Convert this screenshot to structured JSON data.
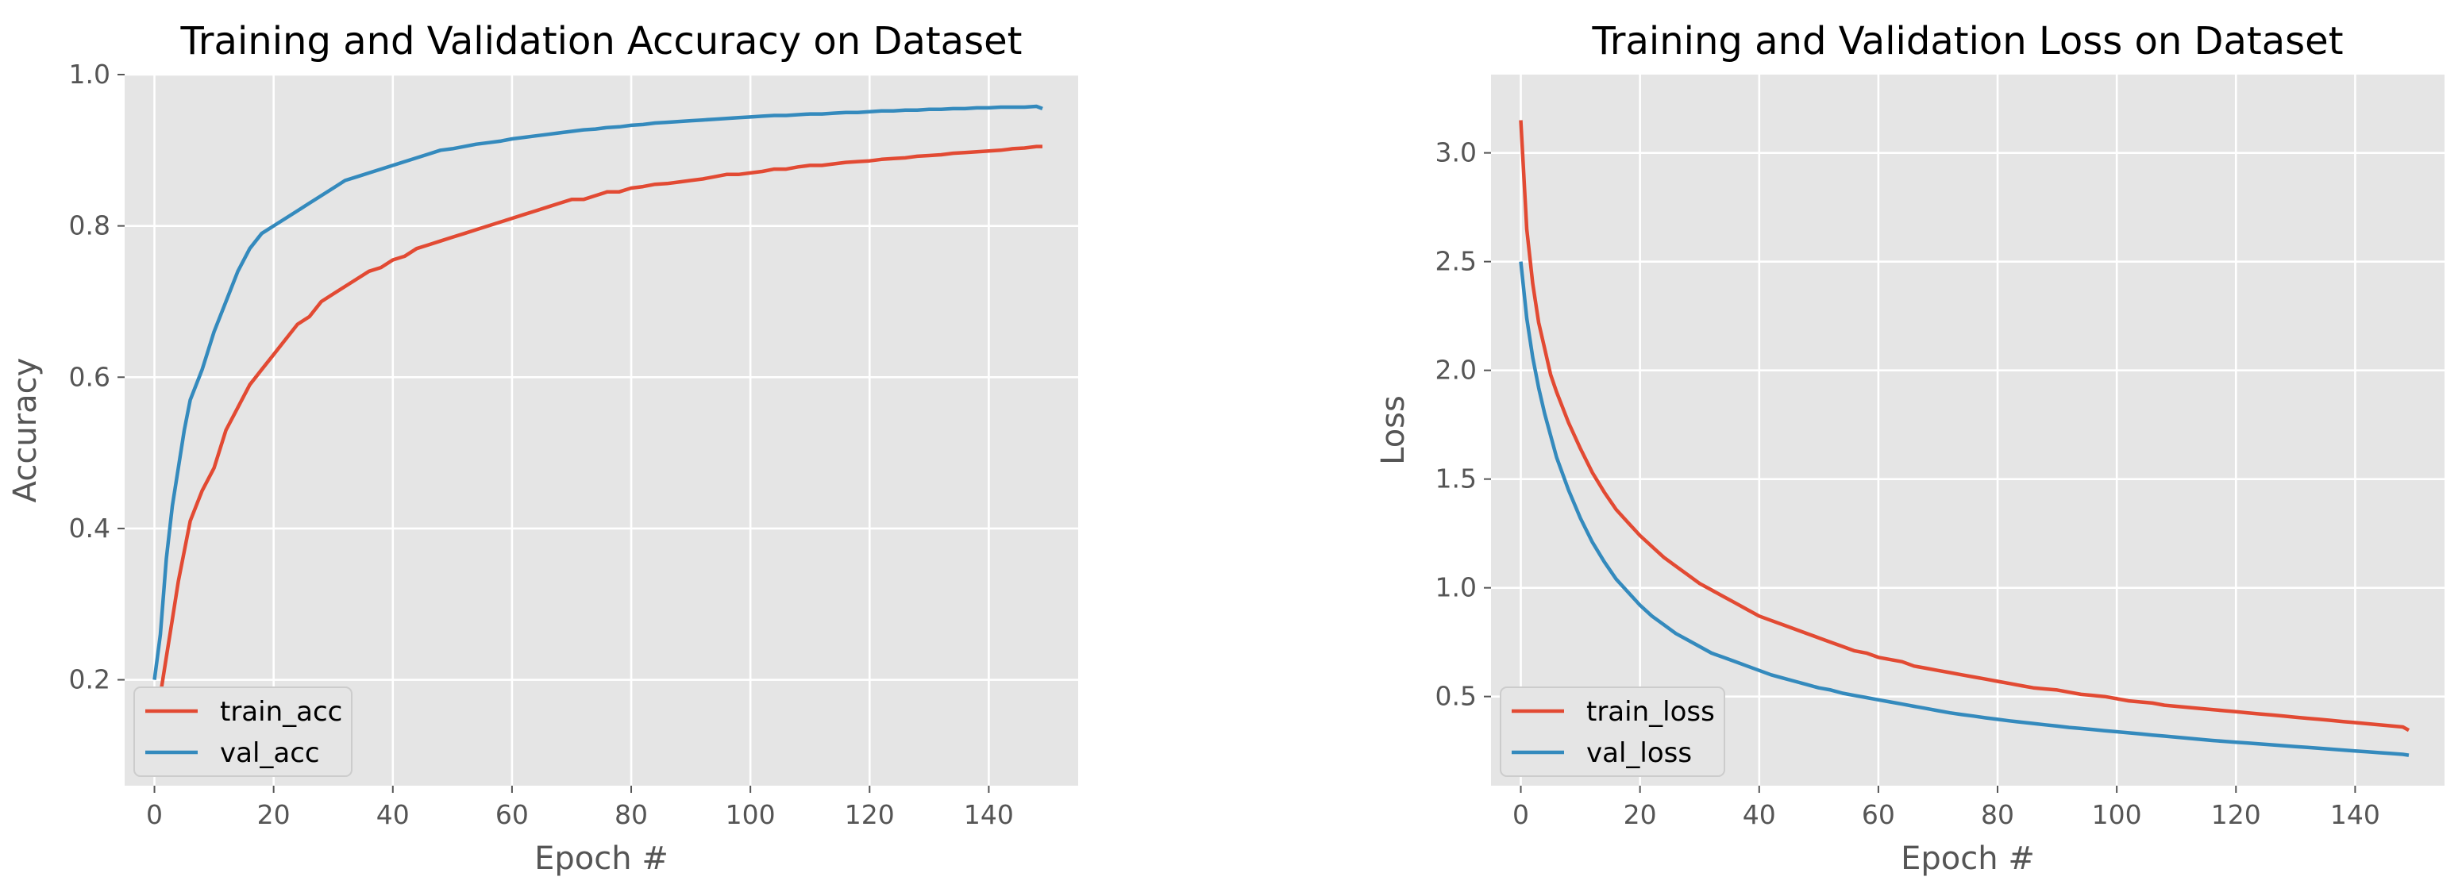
{
  "colors": {
    "train": "#e24a33",
    "val": "#348abd"
  },
  "chart_data": [
    {
      "type": "line",
      "title": "Training and Validation Accuracy on Dataset",
      "xlabel": "Epoch #",
      "ylabel": "Accuracy",
      "xlim": [
        -5,
        155
      ],
      "ylim": [
        0.06,
        1.0
      ],
      "xticks": [
        0,
        20,
        40,
        60,
        80,
        100,
        120,
        140
      ],
      "yticks": [
        0.2,
        0.4,
        0.6,
        0.8,
        1.0
      ],
      "ytick_labels": [
        "0.2",
        "0.4",
        "0.6",
        "0.8",
        "1.0"
      ],
      "grid": true,
      "legend": "lower-left",
      "series": [
        {
          "name": "train_acc",
          "color_key": "train",
          "x": [
            0,
            1,
            2,
            3,
            4,
            5,
            6,
            8,
            10,
            12,
            14,
            16,
            18,
            20,
            22,
            24,
            26,
            28,
            30,
            32,
            34,
            36,
            38,
            40,
            42,
            44,
            46,
            48,
            50,
            52,
            54,
            56,
            58,
            60,
            62,
            64,
            66,
            68,
            70,
            72,
            74,
            76,
            78,
            80,
            82,
            84,
            86,
            88,
            90,
            92,
            94,
            96,
            98,
            100,
            102,
            104,
            106,
            108,
            110,
            112,
            114,
            116,
            118,
            120,
            122,
            124,
            126,
            128,
            130,
            132,
            134,
            136,
            138,
            140,
            142,
            144,
            146,
            148,
            149
          ],
          "y": [
            0.09,
            0.18,
            0.23,
            0.28,
            0.33,
            0.37,
            0.41,
            0.45,
            0.48,
            0.53,
            0.56,
            0.59,
            0.61,
            0.63,
            0.65,
            0.67,
            0.68,
            0.7,
            0.71,
            0.72,
            0.73,
            0.74,
            0.745,
            0.755,
            0.76,
            0.77,
            0.775,
            0.78,
            0.785,
            0.79,
            0.795,
            0.8,
            0.805,
            0.81,
            0.815,
            0.82,
            0.825,
            0.83,
            0.835,
            0.835,
            0.84,
            0.845,
            0.845,
            0.85,
            0.852,
            0.855,
            0.856,
            0.858,
            0.86,
            0.862,
            0.865,
            0.868,
            0.868,
            0.87,
            0.872,
            0.875,
            0.875,
            0.878,
            0.88,
            0.88,
            0.882,
            0.884,
            0.885,
            0.886,
            0.888,
            0.889,
            0.89,
            0.892,
            0.893,
            0.894,
            0.896,
            0.897,
            0.898,
            0.899,
            0.9,
            0.902,
            0.903,
            0.905,
            0.905
          ]
        },
        {
          "name": "val_acc",
          "color_key": "val",
          "x": [
            0,
            1,
            2,
            3,
            4,
            5,
            6,
            8,
            10,
            12,
            14,
            16,
            18,
            20,
            22,
            24,
            26,
            28,
            30,
            32,
            34,
            36,
            38,
            40,
            42,
            44,
            46,
            48,
            50,
            52,
            54,
            56,
            58,
            60,
            62,
            64,
            66,
            68,
            70,
            72,
            74,
            76,
            78,
            80,
            82,
            84,
            86,
            88,
            90,
            92,
            94,
            96,
            98,
            100,
            102,
            104,
            106,
            108,
            110,
            112,
            114,
            116,
            118,
            120,
            122,
            124,
            126,
            128,
            130,
            132,
            134,
            136,
            138,
            140,
            142,
            144,
            146,
            148,
            149
          ],
          "y": [
            0.2,
            0.26,
            0.36,
            0.43,
            0.48,
            0.53,
            0.57,
            0.61,
            0.66,
            0.7,
            0.74,
            0.77,
            0.79,
            0.8,
            0.81,
            0.82,
            0.83,
            0.84,
            0.85,
            0.86,
            0.865,
            0.87,
            0.875,
            0.88,
            0.885,
            0.89,
            0.895,
            0.9,
            0.902,
            0.905,
            0.908,
            0.91,
            0.912,
            0.915,
            0.917,
            0.919,
            0.921,
            0.923,
            0.925,
            0.927,
            0.928,
            0.93,
            0.931,
            0.933,
            0.934,
            0.936,
            0.937,
            0.938,
            0.939,
            0.94,
            0.941,
            0.942,
            0.943,
            0.944,
            0.945,
            0.946,
            0.946,
            0.947,
            0.948,
            0.948,
            0.949,
            0.95,
            0.95,
            0.951,
            0.952,
            0.952,
            0.953,
            0.953,
            0.954,
            0.954,
            0.955,
            0.955,
            0.956,
            0.956,
            0.957,
            0.957,
            0.957,
            0.958,
            0.955
          ]
        }
      ]
    },
    {
      "type": "line",
      "title": "Training and Validation Loss on Dataset",
      "xlabel": "Epoch #",
      "ylabel": "Loss",
      "xlim": [
        -5,
        155
      ],
      "ylim": [
        0.09,
        3.36
      ],
      "xticks": [
        0,
        20,
        40,
        60,
        80,
        100,
        120,
        140
      ],
      "yticks": [
        0.5,
        1.0,
        1.5,
        2.0,
        2.5,
        3.0
      ],
      "ytick_labels": [
        "0.5",
        "1.0",
        "1.5",
        "2.0",
        "2.5",
        "3.0"
      ],
      "grid": true,
      "legend": "lower-left",
      "series": [
        {
          "name": "train_loss",
          "color_key": "train",
          "x": [
            0,
            1,
            2,
            3,
            4,
            5,
            6,
            8,
            10,
            12,
            14,
            16,
            18,
            20,
            22,
            24,
            26,
            28,
            30,
            32,
            34,
            36,
            38,
            40,
            42,
            44,
            46,
            48,
            50,
            52,
            54,
            56,
            58,
            60,
            62,
            64,
            66,
            68,
            70,
            72,
            74,
            76,
            78,
            80,
            82,
            84,
            86,
            88,
            90,
            92,
            94,
            96,
            98,
            100,
            102,
            104,
            106,
            108,
            110,
            112,
            114,
            116,
            118,
            120,
            122,
            124,
            126,
            128,
            130,
            132,
            134,
            136,
            138,
            140,
            142,
            144,
            146,
            148,
            149
          ],
          "y": [
            3.15,
            2.65,
            2.4,
            2.22,
            2.1,
            1.98,
            1.9,
            1.76,
            1.64,
            1.53,
            1.44,
            1.36,
            1.3,
            1.24,
            1.19,
            1.14,
            1.1,
            1.06,
            1.02,
            0.99,
            0.96,
            0.93,
            0.9,
            0.87,
            0.85,
            0.83,
            0.81,
            0.79,
            0.77,
            0.75,
            0.73,
            0.71,
            0.7,
            0.68,
            0.67,
            0.66,
            0.64,
            0.63,
            0.62,
            0.61,
            0.6,
            0.59,
            0.58,
            0.57,
            0.56,
            0.55,
            0.54,
            0.535,
            0.53,
            0.52,
            0.51,
            0.505,
            0.5,
            0.49,
            0.48,
            0.475,
            0.47,
            0.46,
            0.455,
            0.45,
            0.445,
            0.44,
            0.435,
            0.43,
            0.425,
            0.42,
            0.415,
            0.41,
            0.405,
            0.4,
            0.395,
            0.39,
            0.385,
            0.38,
            0.375,
            0.37,
            0.365,
            0.36,
            0.345
          ]
        },
        {
          "name": "val_loss",
          "color_key": "val",
          "x": [
            0,
            1,
            2,
            3,
            4,
            5,
            6,
            8,
            10,
            12,
            14,
            16,
            18,
            20,
            22,
            24,
            26,
            28,
            30,
            32,
            34,
            36,
            38,
            40,
            42,
            44,
            46,
            48,
            50,
            52,
            54,
            56,
            58,
            60,
            62,
            64,
            66,
            68,
            70,
            72,
            74,
            76,
            78,
            80,
            82,
            84,
            86,
            88,
            90,
            92,
            94,
            96,
            98,
            100,
            102,
            104,
            106,
            108,
            110,
            112,
            114,
            116,
            118,
            120,
            122,
            124,
            126,
            128,
            130,
            132,
            134,
            136,
            138,
            140,
            142,
            144,
            146,
            148,
            149
          ],
          "y": [
            2.5,
            2.24,
            2.06,
            1.92,
            1.8,
            1.7,
            1.6,
            1.45,
            1.32,
            1.21,
            1.12,
            1.04,
            0.98,
            0.92,
            0.87,
            0.83,
            0.79,
            0.76,
            0.73,
            0.7,
            0.68,
            0.66,
            0.64,
            0.62,
            0.6,
            0.585,
            0.57,
            0.555,
            0.54,
            0.53,
            0.515,
            0.505,
            0.495,
            0.485,
            0.475,
            0.465,
            0.455,
            0.445,
            0.435,
            0.425,
            0.417,
            0.41,
            0.402,
            0.395,
            0.388,
            0.382,
            0.376,
            0.37,
            0.364,
            0.358,
            0.353,
            0.348,
            0.343,
            0.338,
            0.333,
            0.328,
            0.323,
            0.318,
            0.313,
            0.308,
            0.303,
            0.298,
            0.294,
            0.29,
            0.286,
            0.282,
            0.278,
            0.274,
            0.27,
            0.266,
            0.262,
            0.258,
            0.254,
            0.25,
            0.246,
            0.242,
            0.238,
            0.234,
            0.23
          ]
        }
      ]
    }
  ]
}
